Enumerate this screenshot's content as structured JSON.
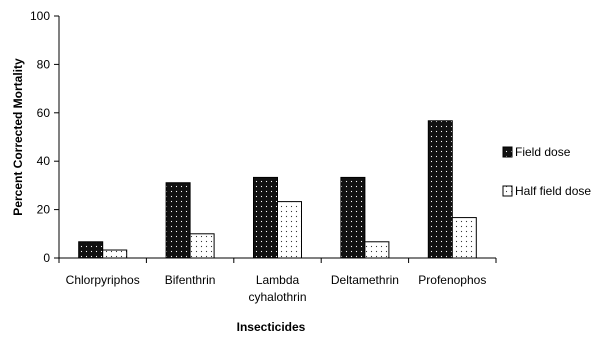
{
  "chart_data": {
    "type": "bar",
    "categories": [
      [
        "Chlorpyriphos"
      ],
      [
        "Bifenthrin"
      ],
      [
        "Lambda",
        "cyhalothrin"
      ],
      [
        "Deltamethrin"
      ],
      [
        "Profenophos"
      ]
    ],
    "series": [
      {
        "name": "Field dose",
        "values": [
          6.7,
          31.1,
          33.3,
          33.3,
          56.7
        ],
        "pattern": "dark-dots"
      },
      {
        "name": "Half field dose",
        "values": [
          3.3,
          10.0,
          23.3,
          6.7,
          16.7
        ],
        "pattern": "light-dots"
      }
    ],
    "xlabel": "Insecticides",
    "ylabel": "Percent Corrected Mortality",
    "ylim": [
      0,
      100
    ],
    "yticks": [
      0,
      20,
      40,
      60,
      80,
      100
    ],
    "grid": false,
    "legend_position": "right"
  }
}
